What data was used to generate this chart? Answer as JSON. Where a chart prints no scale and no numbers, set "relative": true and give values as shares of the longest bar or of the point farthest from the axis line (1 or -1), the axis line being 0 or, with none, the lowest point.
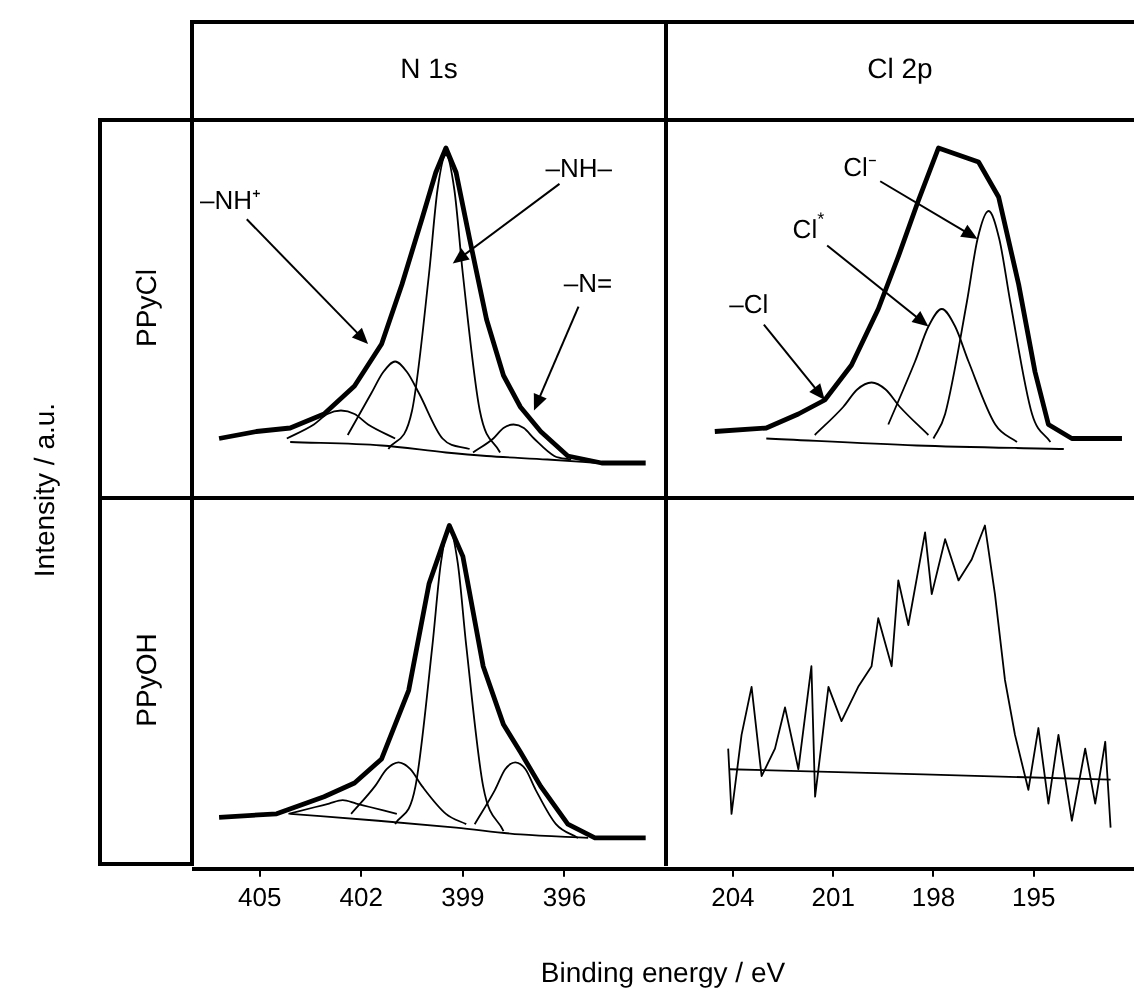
{
  "chart_data": [
    {
      "type": "line",
      "title": "N 1s",
      "subtitle": "PPyCl",
      "ylabel": "Intensity / a.u.",
      "relative": true,
      "xlim": [
        407,
        393
      ],
      "xticks": [
        405,
        402,
        399,
        396
      ],
      "tick_labels": false,
      "marker": "none",
      "series": [
        {
          "color": "#000000",
          "x": [
            406.2,
            405.1,
            404.1,
            403.1,
            402.2,
            401.4,
            400.8,
            400.2,
            399.8,
            399.5,
            399.2,
            398.8,
            398.3,
            397.8,
            397.3,
            396.7,
            395.9,
            394.9,
            393.6
          ],
          "values": [
            0.17,
            0.19,
            0.2,
            0.24,
            0.32,
            0.44,
            0.61,
            0.8,
            0.93,
            1,
            0.93,
            0.74,
            0.51,
            0.35,
            0.26,
            0.19,
            0.12,
            0.1,
            0.1
          ]
        },
        {
          "color": "#000000",
          "x": [
            404.1,
            401.4,
            399.5,
            398.3,
            396.5,
            395.0
          ],
          "values": [
            0.16,
            0.15,
            0.13,
            0.12,
            0.11,
            0.1
          ]
        },
        {
          "color": "#000000",
          "x": [
            404.2,
            403.4,
            403.0,
            402.6,
            402.2,
            401.8,
            401.0
          ],
          "values": [
            0.17,
            0.21,
            0.24,
            0.25,
            0.24,
            0.21,
            0.17
          ]
        },
        {
          "color": "#000000",
          "x": [
            402.4,
            401.7,
            401.35,
            401.0,
            400.65,
            400.3,
            399.6,
            398.8
          ],
          "values": [
            0.18,
            0.3,
            0.36,
            0.39,
            0.36,
            0.3,
            0.17,
            0.14
          ]
        },
        {
          "color": "#000000",
          "x": [
            401.2,
            400.5,
            400.0,
            399.75,
            399.5,
            399.25,
            399.0,
            398.5,
            397.9
          ],
          "values": [
            0.14,
            0.25,
            0.64,
            0.88,
            0.98,
            0.88,
            0.64,
            0.25,
            0.13
          ]
        },
        {
          "color": "#000000",
          "x": [
            398.7,
            398.1,
            397.8,
            397.5,
            397.2,
            396.9,
            396.3,
            395.8
          ],
          "values": [
            0.13,
            0.17,
            0.2,
            0.21,
            0.2,
            0.17,
            0.12,
            0.11
          ]
        }
      ],
      "annotations": [
        {
          "text": "–NH⁺",
          "x": 401.8,
          "y": 0.44
        },
        {
          "text": "–NH–",
          "x": 399.3,
          "y": 0.67
        },
        {
          "text": "–N=",
          "x": 396.9,
          "y": 0.25
        }
      ]
    },
    {
      "type": "line",
      "title": "Cl 2p",
      "relative": true,
      "xlim": [
        206,
        192
      ],
      "xticks": [
        204,
        201,
        198,
        195
      ],
      "tick_labels": false,
      "marker": "none",
      "series": [
        {
          "color": "#000000",
          "x": [
            204.54,
            203.0,
            202.04,
            201.25,
            200.45,
            199.65,
            199.05,
            198.45,
            197.85,
            197.25,
            196.65,
            196.05,
            195.45,
            194.96,
            194.56,
            193.86,
            192.36
          ],
          "values": [
            0.19,
            0.2,
            0.24,
            0.28,
            0.38,
            0.54,
            0.69,
            0.85,
            1,
            0.98,
            0.96,
            0.86,
            0.61,
            0.36,
            0.21,
            0.17,
            0.17
          ]
        },
        {
          "color": "#000000",
          "x": [
            203.0,
            198.5,
            194.1
          ],
          "values": [
            0.17,
            0.15,
            0.14
          ]
        },
        {
          "color": "#000000",
          "x": [
            201.55,
            200.7,
            200.28,
            199.85,
            199.43,
            199.0,
            198.15
          ],
          "values": [
            0.18,
            0.26,
            0.31,
            0.33,
            0.31,
            0.26,
            0.18
          ]
        },
        {
          "color": "#000000",
          "x": [
            199.35,
            198.55,
            198.15,
            197.75,
            197.35,
            196.95,
            196.15,
            195.5
          ],
          "values": [
            0.21,
            0.39,
            0.49,
            0.54,
            0.49,
            0.39,
            0.21,
            0.16
          ]
        },
        {
          "color": "#000000",
          "x": [
            198.0,
            197.65,
            197.0,
            196.68,
            196.35,
            196.03,
            195.7,
            195.05,
            194.5
          ],
          "values": [
            0.17,
            0.24,
            0.56,
            0.74,
            0.82,
            0.74,
            0.56,
            0.24,
            0.16
          ]
        }
      ],
      "annotations": [
        {
          "text": "Cl⁻",
          "x": 196.68,
          "y": 0.74
        },
        {
          "text": "Cl$^{*}$",
          "x": 198.15,
          "y": 0.49
        },
        {
          "text": "–Cl",
          "x": 201.25,
          "y": 0.28
        }
      ]
    },
    {
      "type": "line",
      "subtitle": "PPyOH",
      "xlabel": "Binding energy / eV",
      "relative": true,
      "xlim": [
        407,
        393
      ],
      "xticks": [
        405,
        402,
        399,
        396
      ],
      "tick_labels": "x",
      "marker": "none",
      "series": [
        {
          "color": "#000000",
          "x": [
            406.2,
            404.5,
            403.1,
            402.2,
            401.4,
            400.6,
            400.0,
            399.4,
            399.0,
            398.4,
            397.8,
            397.3,
            396.7,
            395.9,
            395.1,
            393.6
          ],
          "values": [
            0.15,
            0.16,
            0.21,
            0.25,
            0.32,
            0.52,
            0.83,
            1,
            0.91,
            0.59,
            0.42,
            0.34,
            0.24,
            0.13,
            0.09,
            0.09
          ]
        },
        {
          "color": "#000000",
          "x": [
            404.1,
            401.5,
            399.2,
            397.3,
            395.3
          ],
          "values": [
            0.16,
            0.14,
            0.12,
            0.1,
            0.09
          ]
        },
        {
          "color": "#000000",
          "x": [
            404.15,
            403.35,
            402.95,
            402.55,
            402.15,
            401.75,
            400.95
          ],
          "values": [
            0.16,
            0.18,
            0.19,
            0.2,
            0.19,
            0.18,
            0.16
          ]
        },
        {
          "color": "#000000",
          "x": [
            402.3,
            401.6,
            401.25,
            400.9,
            400.55,
            400.2,
            399.5,
            398.9
          ],
          "values": [
            0.16,
            0.24,
            0.29,
            0.31,
            0.29,
            0.24,
            0.16,
            0.13
          ]
        },
        {
          "color": "#000000",
          "x": [
            401.0,
            400.4,
            399.9,
            399.65,
            399.4,
            399.15,
            398.9,
            398.4,
            397.8
          ],
          "values": [
            0.13,
            0.24,
            0.65,
            0.89,
            0.99,
            0.89,
            0.65,
            0.24,
            0.11
          ]
        },
        {
          "color": "#000000",
          "x": [
            398.65,
            398.05,
            397.75,
            397.45,
            397.15,
            396.85,
            396.25,
            395.6
          ],
          "values": [
            0.13,
            0.23,
            0.29,
            0.31,
            0.29,
            0.23,
            0.13,
            0.09
          ]
        }
      ]
    },
    {
      "type": "line",
      "relative": true,
      "xlim": [
        206,
        192
      ],
      "xticks": [
        204,
        201,
        198,
        195
      ],
      "tick_labels": "x",
      "marker": "none",
      "series": [
        {
          "color": "#000000",
          "x": [
            204.14,
            204.04,
            203.74,
            203.44,
            203.14,
            202.74,
            202.44,
            202.04,
            201.65,
            201.54,
            201.14,
            200.75,
            200.25,
            199.85,
            199.65,
            199.25,
            199.05,
            198.75,
            198.25,
            198.05,
            197.65,
            197.25,
            196.86,
            196.46,
            196.16,
            195.86,
            195.56,
            195.16,
            194.86,
            194.56,
            194.26,
            193.86,
            193.46,
            193.16,
            192.86,
            192.7
          ],
          "values": [
            0.35,
            0.16,
            0.39,
            0.53,
            0.27,
            0.35,
            0.47,
            0.29,
            0.59,
            0.21,
            0.53,
            0.43,
            0.53,
            0.59,
            0.73,
            0.59,
            0.84,
            0.71,
            0.98,
            0.8,
            0.96,
            0.84,
            0.9,
            1,
            0.8,
            0.55,
            0.39,
            0.23,
            0.41,
            0.19,
            0.39,
            0.14,
            0.35,
            0.19,
            0.37,
            0.12
          ]
        },
        {
          "color": "#000000",
          "x": [
            204.1,
            192.7
          ],
          "values": [
            0.29,
            0.26
          ]
        }
      ]
    }
  ]
}
